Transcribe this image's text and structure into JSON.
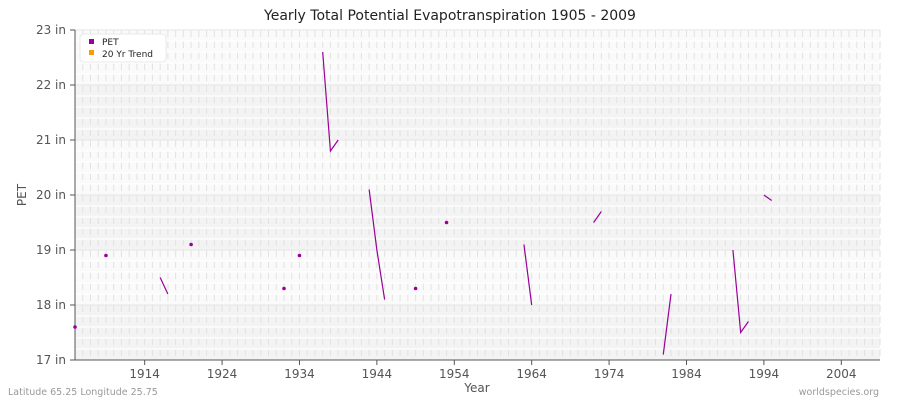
{
  "chart_data": {
    "type": "line",
    "title": "Yearly Total Potential Evapotranspiration 1905 - 2009",
    "xlabel": "Year",
    "ylabel": "PET",
    "xlim": [
      1905,
      2009
    ],
    "ylim": [
      17,
      23
    ],
    "x_ticks": [
      1914,
      1924,
      1934,
      1944,
      1954,
      1964,
      1974,
      1984,
      1994,
      2004
    ],
    "y_ticks": [
      17,
      18,
      19,
      20,
      21,
      22,
      23
    ],
    "y_tick_labels": [
      "17 in",
      "18 in",
      "19 in",
      "20 in",
      "21 in",
      "22 in",
      "23 in"
    ],
    "grid": true,
    "legend_position": "top-left",
    "legend": [
      {
        "label": "PET",
        "color": "#990099"
      },
      {
        "label": "20 Yr Trend",
        "color": "#ff9900"
      }
    ],
    "series": [
      {
        "name": "PET",
        "color": "#990099",
        "segments": [
          [
            [
              1905,
              17.6
            ]
          ],
          [
            [
              1909,
              18.9
            ]
          ],
          [
            [
              1916,
              18.5
            ],
            [
              1917,
              18.2
            ]
          ],
          [
            [
              1920,
              19.1
            ]
          ],
          [
            [
              1932,
              18.3
            ]
          ],
          [
            [
              1934,
              18.9
            ]
          ],
          [
            [
              1937,
              22.6
            ],
            [
              1938,
              20.8
            ],
            [
              1939,
              21.0
            ]
          ],
          [
            [
              1943,
              20.1
            ],
            [
              1944,
              19.0
            ],
            [
              1945,
              18.1
            ]
          ],
          [
            [
              1949,
              18.3
            ]
          ],
          [
            [
              1953,
              19.5
            ]
          ],
          [
            [
              1963,
              19.1
            ],
            [
              1964,
              18.0
            ]
          ],
          [
            [
              1972,
              19.5
            ],
            [
              1973,
              19.7
            ]
          ],
          [
            [
              1981,
              17.1
            ],
            [
              1982,
              18.2
            ]
          ],
          [
            [
              1990,
              19.0
            ],
            [
              1991,
              17.5
            ],
            [
              1992,
              17.7
            ]
          ],
          [
            [
              1994,
              20.0
            ],
            [
              1995,
              19.9
            ]
          ]
        ]
      },
      {
        "name": "20 Yr Trend",
        "color": "#ff9900",
        "segments": []
      }
    ]
  },
  "footer": {
    "left": "Latitude 65.25 Longitude 25.75",
    "right": "worldspecies.org"
  },
  "colors": {
    "band_light": "#fafafa",
    "band_dark": "#f3f3f3",
    "axis": "#555555"
  }
}
